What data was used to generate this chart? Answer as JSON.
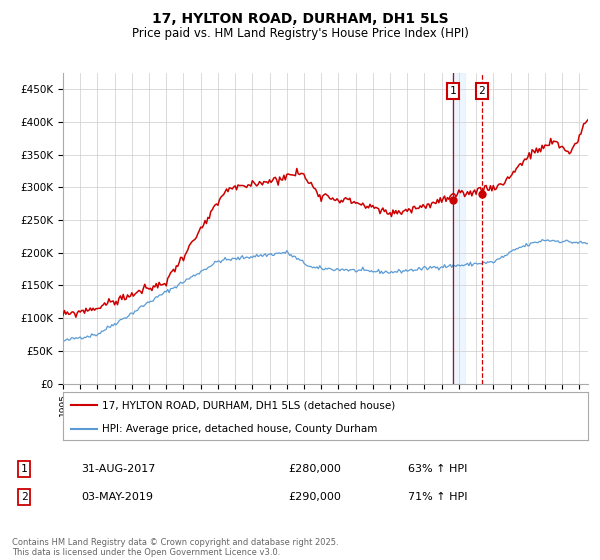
{
  "title": "17, HYLTON ROAD, DURHAM, DH1 5LS",
  "subtitle": "Price paid vs. HM Land Registry's House Price Index (HPI)",
  "ylabel_ticks": [
    "£0",
    "£50K",
    "£100K",
    "£150K",
    "£200K",
    "£250K",
    "£300K",
    "£350K",
    "£400K",
    "£450K"
  ],
  "ytick_values": [
    0,
    50000,
    100000,
    150000,
    200000,
    250000,
    300000,
    350000,
    400000,
    450000
  ],
  "ylim": [
    0,
    475000
  ],
  "xlim_start": 1995.0,
  "xlim_end": 2025.5,
  "hpi_color": "#5b9bd5",
  "price_color": "#cc0000",
  "sale1_x": 2017.667,
  "sale1_y": 280000,
  "sale2_x": 2019.33,
  "sale2_y": 290000,
  "sale1_label": "1",
  "sale2_label": "2",
  "legend_line1": "17, HYLTON ROAD, DURHAM, DH1 5LS (detached house)",
  "legend_line2": "HPI: Average price, detached house, County Durham",
  "table_row1": [
    "1",
    "31-AUG-2017",
    "£280,000",
    "63% ↑ HPI"
  ],
  "table_row2": [
    "2",
    "03-MAY-2019",
    "£290,000",
    "71% ↑ HPI"
  ],
  "footer": "Contains HM Land Registry data © Crown copyright and database right 2025.\nThis data is licensed under the Open Government Licence v3.0.",
  "background_color": "#ffffff",
  "grid_color": "#cccccc"
}
